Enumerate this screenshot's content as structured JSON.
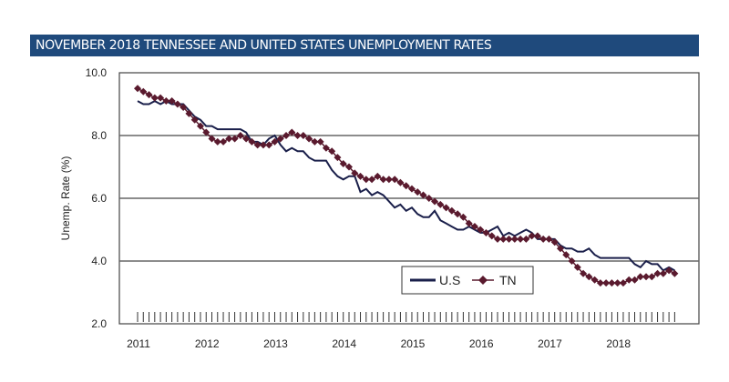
{
  "chart_data": {
    "type": "line",
    "title": "NOVEMBER 2018 TENNESSEE AND UNITED STATES UNEMPLOYMENT RATES",
    "xlabel": "",
    "ylabel": "Unemp. Rate (%)",
    "ylim": [
      2.0,
      10.0
    ],
    "yticks": [
      "2.0",
      "4.0",
      "6.0",
      "8.0",
      "10.0"
    ],
    "xticks": [
      "2011",
      "2012",
      "2013",
      "2014",
      "2015",
      "2016",
      "2017",
      "2018"
    ],
    "x_start": "Jan 2011",
    "x_end": "Nov 2018",
    "frequency": "monthly",
    "grid": true,
    "legend": "bottom-center",
    "series": [
      {
        "name": "U.S",
        "color": "#1a1f4a",
        "marker": "none",
        "values": [
          9.1,
          9.0,
          9.0,
          9.1,
          9.0,
          9.1,
          9.0,
          9.0,
          9.0,
          8.8,
          8.6,
          8.5,
          8.3,
          8.3,
          8.2,
          8.2,
          8.2,
          8.2,
          8.2,
          8.1,
          7.8,
          7.8,
          7.7,
          7.9,
          8.0,
          7.7,
          7.5,
          7.6,
          7.5,
          7.5,
          7.3,
          7.2,
          7.2,
          7.2,
          6.9,
          6.7,
          6.6,
          6.7,
          6.7,
          6.2,
          6.3,
          6.1,
          6.2,
          6.1,
          5.9,
          5.7,
          5.8,
          5.6,
          5.7,
          5.5,
          5.4,
          5.4,
          5.6,
          5.3,
          5.2,
          5.1,
          5.0,
          5.0,
          5.1,
          5.0,
          4.9,
          4.9,
          5.0,
          5.1,
          4.8,
          4.9,
          4.8,
          4.9,
          5.0,
          4.9,
          4.7,
          4.7,
          4.7,
          4.7,
          4.5,
          4.4,
          4.4,
          4.3,
          4.3,
          4.4,
          4.2,
          4.1,
          4.1,
          4.1,
          4.1,
          4.1,
          4.1,
          3.9,
          3.8,
          4.0,
          3.9,
          3.9,
          3.7,
          3.8,
          3.7
        ]
      },
      {
        "name": "TN",
        "color": "#5a1a2e",
        "marker": "diamond",
        "values": [
          9.5,
          9.4,
          9.3,
          9.2,
          9.2,
          9.1,
          9.1,
          9.0,
          8.9,
          8.7,
          8.5,
          8.3,
          8.1,
          7.9,
          7.8,
          7.8,
          7.9,
          7.9,
          8.0,
          7.9,
          7.8,
          7.7,
          7.7,
          7.7,
          7.8,
          7.9,
          8.0,
          8.1,
          8.0,
          8.0,
          7.9,
          7.8,
          7.8,
          7.6,
          7.5,
          7.3,
          7.1,
          7.0,
          6.8,
          6.7,
          6.6,
          6.6,
          6.7,
          6.6,
          6.6,
          6.6,
          6.5,
          6.4,
          6.3,
          6.2,
          6.1,
          6.0,
          5.9,
          5.8,
          5.7,
          5.6,
          5.5,
          5.4,
          5.2,
          5.1,
          5.0,
          4.9,
          4.8,
          4.7,
          4.7,
          4.7,
          4.7,
          4.7,
          4.7,
          4.8,
          4.8,
          4.7,
          4.7,
          4.6,
          4.4,
          4.2,
          4.0,
          3.8,
          3.6,
          3.5,
          3.4,
          3.3,
          3.3,
          3.3,
          3.3,
          3.3,
          3.4,
          3.4,
          3.5,
          3.5,
          3.5,
          3.6,
          3.6,
          3.7,
          3.6
        ]
      }
    ]
  }
}
